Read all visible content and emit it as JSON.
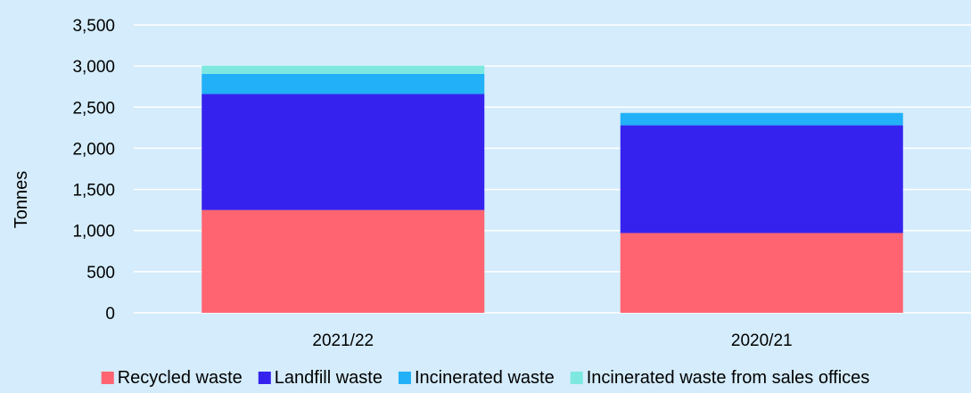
{
  "chart_data": {
    "type": "bar",
    "stacked": true,
    "title": "",
    "xlabel": "",
    "ylabel": "Tonnes",
    "ylim": [
      0,
      3500
    ],
    "yticks": [
      0,
      500,
      1000,
      1500,
      2000,
      2500,
      3000,
      3500
    ],
    "ytick_labels": [
      "0",
      "500",
      "1,000",
      "1,500",
      "2,000",
      "2,500",
      "3,000",
      "3,500"
    ],
    "grid": true,
    "legend": "bottom",
    "categories": [
      "2021/22",
      "2020/21"
    ],
    "series": [
      {
        "name": "Recycled waste",
        "color": "#ff6470",
        "values": [
          1250,
          970
        ]
      },
      {
        "name": "Landfill waste",
        "color": "#3622ee",
        "values": [
          1410,
          1310
        ]
      },
      {
        "name": "Incinerated waste",
        "color": "#22b0f8",
        "values": [
          245,
          150
        ]
      },
      {
        "name": "Incinerated waste from sales offices",
        "color": "#7de8e0",
        "values": [
          100,
          0
        ]
      }
    ]
  }
}
